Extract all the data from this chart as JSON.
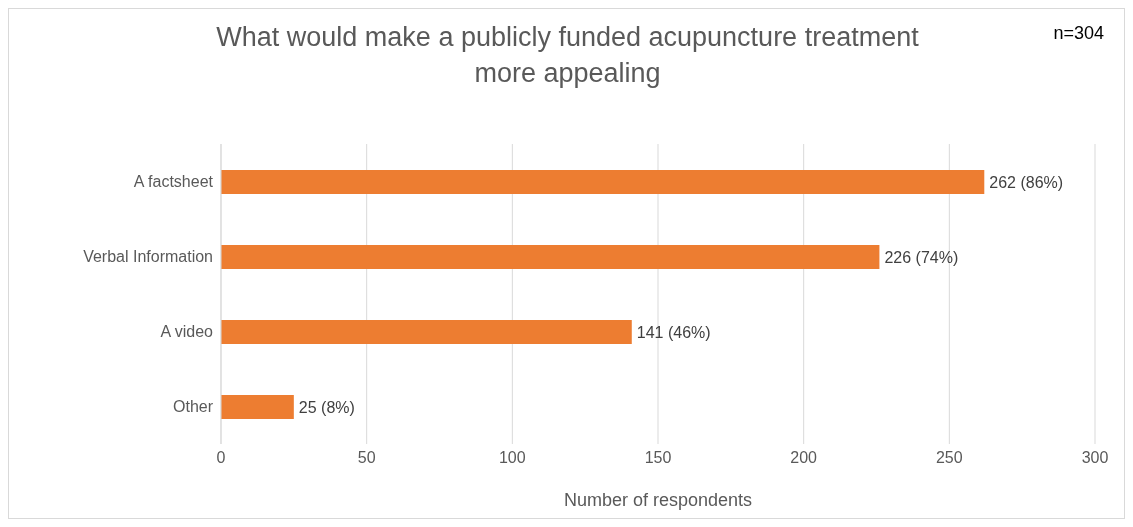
{
  "chart_data": {
    "type": "bar",
    "orientation": "horizontal",
    "title": "What would make a publicly funded acupuncture treatment more appealing",
    "xlabel": "Number of respondents",
    "categories": [
      "A factsheet",
      "Verbal Information",
      "A video",
      "Other"
    ],
    "values": [
      262,
      226,
      141,
      25
    ],
    "color": "#ed7d31",
    "value_labels": [
      "262 (86%)",
      "226 (74%)",
      "141 (46%)",
      "25 (8%)"
    ],
    "xlim": [
      0,
      300
    ],
    "xticks": [
      0,
      50,
      100,
      150,
      200,
      250,
      300
    ],
    "grid": "x",
    "legend": false,
    "annotations": [
      "n=304"
    ]
  }
}
